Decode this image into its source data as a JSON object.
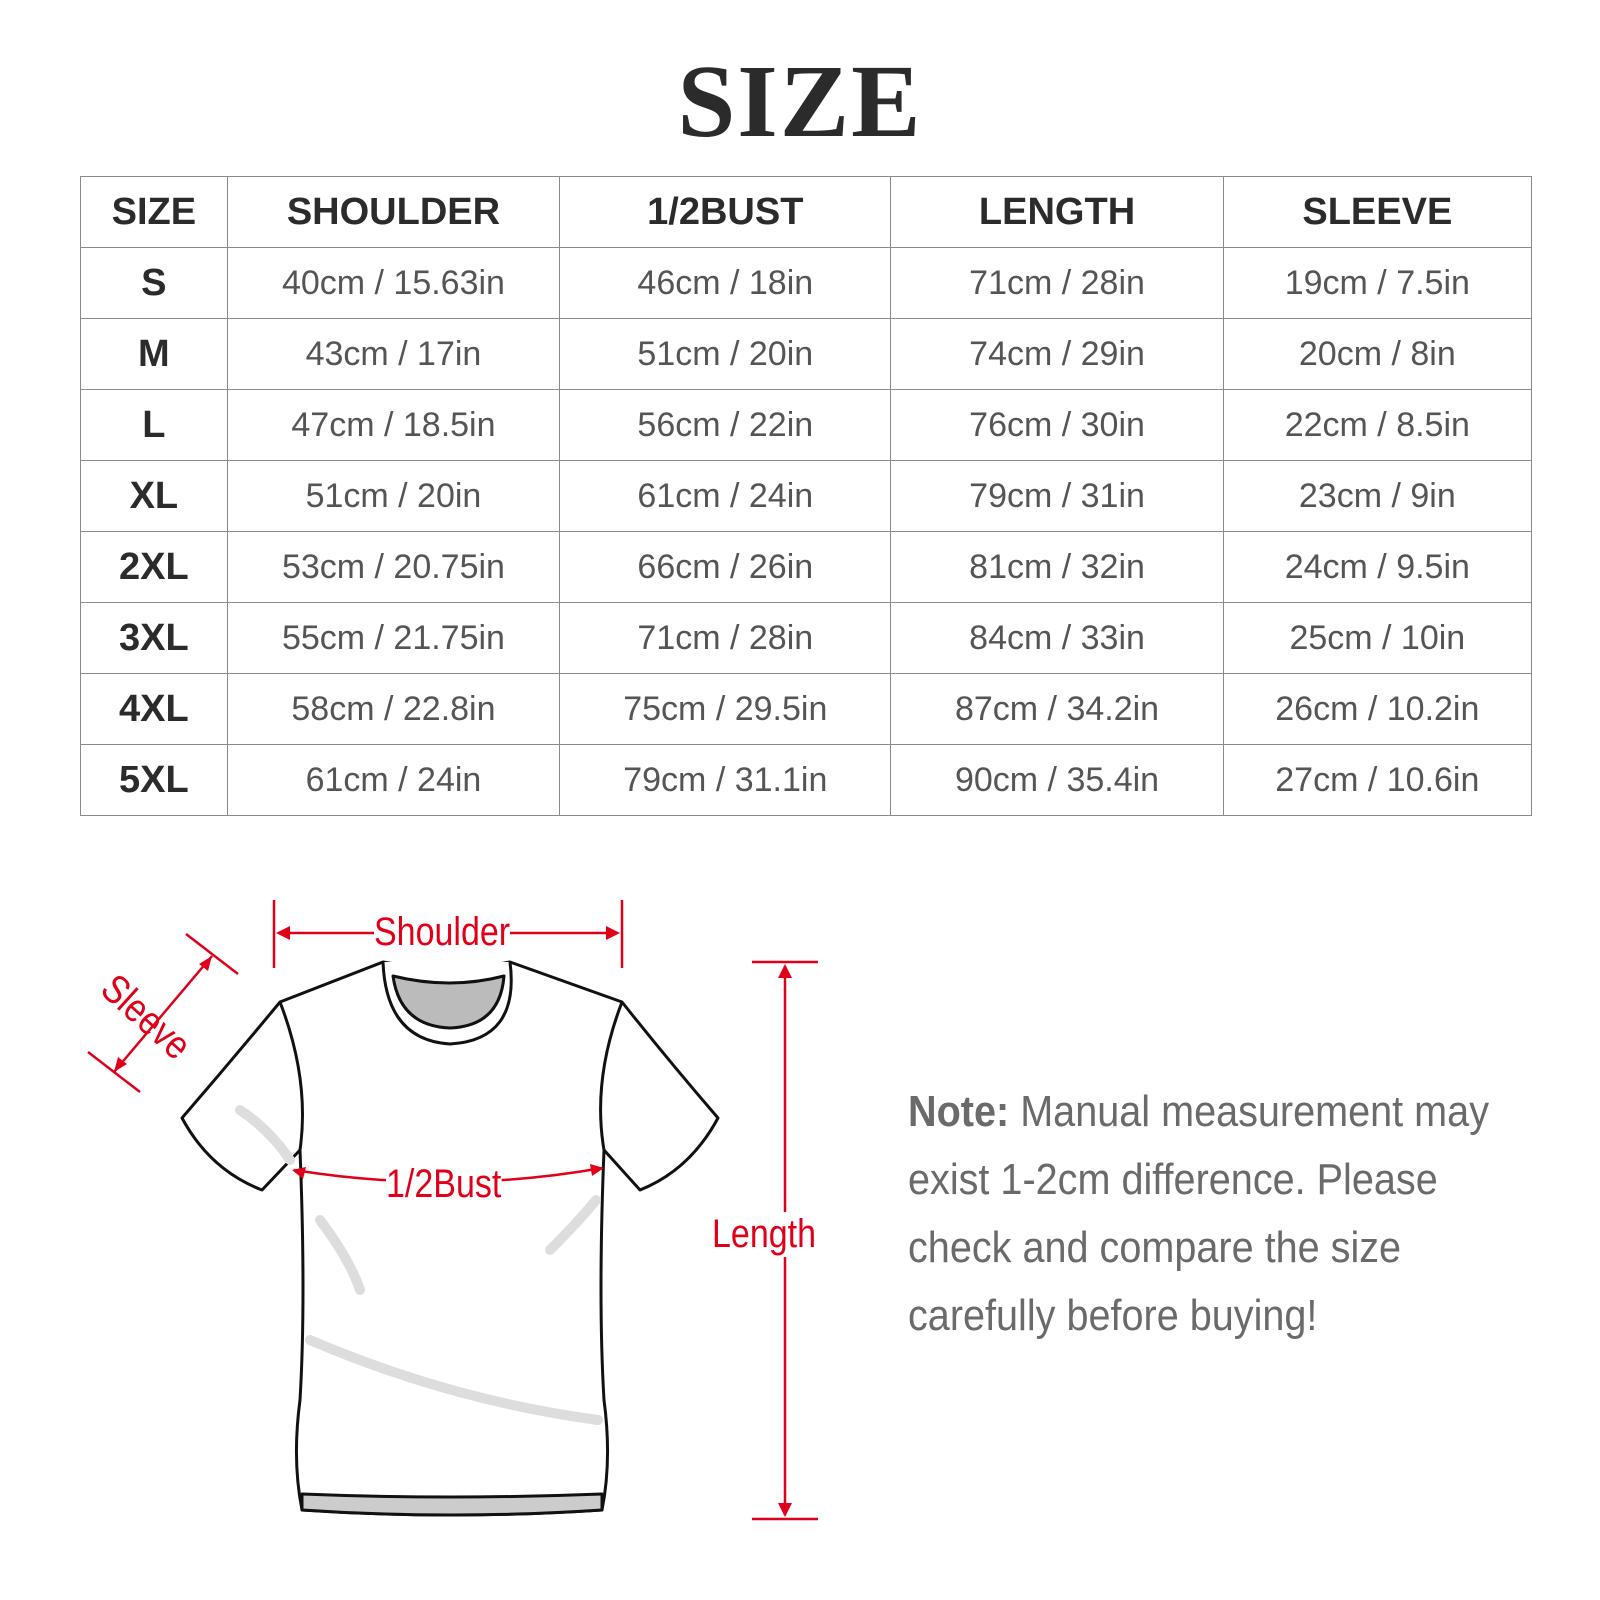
{
  "title": "SIZE",
  "table": {
    "headers": [
      "SIZE",
      "SHOULDER",
      "1/2BUST",
      "LENGTH",
      "SLEEVE"
    ],
    "rows": [
      [
        "S",
        "40cm / 15.63in",
        "46cm / 18in",
        "71cm / 28in",
        "19cm / 7.5in"
      ],
      [
        "M",
        "43cm / 17in",
        "51cm / 20in",
        "74cm / 29in",
        "20cm / 8in"
      ],
      [
        "L",
        "47cm / 18.5in",
        "56cm / 22in",
        "76cm / 30in",
        "22cm / 8.5in"
      ],
      [
        "XL",
        "51cm / 20in",
        "61cm / 24in",
        "79cm / 31in",
        "23cm / 9in"
      ],
      [
        "2XL",
        "53cm / 20.75in",
        "66cm / 26in",
        "81cm / 32in",
        "24cm / 9.5in"
      ],
      [
        "3XL",
        "55cm / 21.75in",
        "71cm / 28in",
        "84cm / 33in",
        "25cm / 10in"
      ],
      [
        "4XL",
        "58cm / 22.8in",
        "75cm / 29.5in",
        "87cm / 34.2in",
        "26cm / 10.2in"
      ],
      [
        "5XL",
        "61cm / 24in",
        "79cm / 31.1in",
        "90cm / 35.4in",
        "27cm / 10.6in"
      ]
    ]
  },
  "diagram": {
    "shoulder_label": "Shoulder",
    "sleeve_label": "Sleeve",
    "bust_label": "1/2Bust",
    "length_label": "Length",
    "accent_color": "#e0001a"
  },
  "note": {
    "label": "Note:",
    "text": " Manual measurement may exist 1-2cm difference. Please check and compare the size carefully before buying!"
  }
}
